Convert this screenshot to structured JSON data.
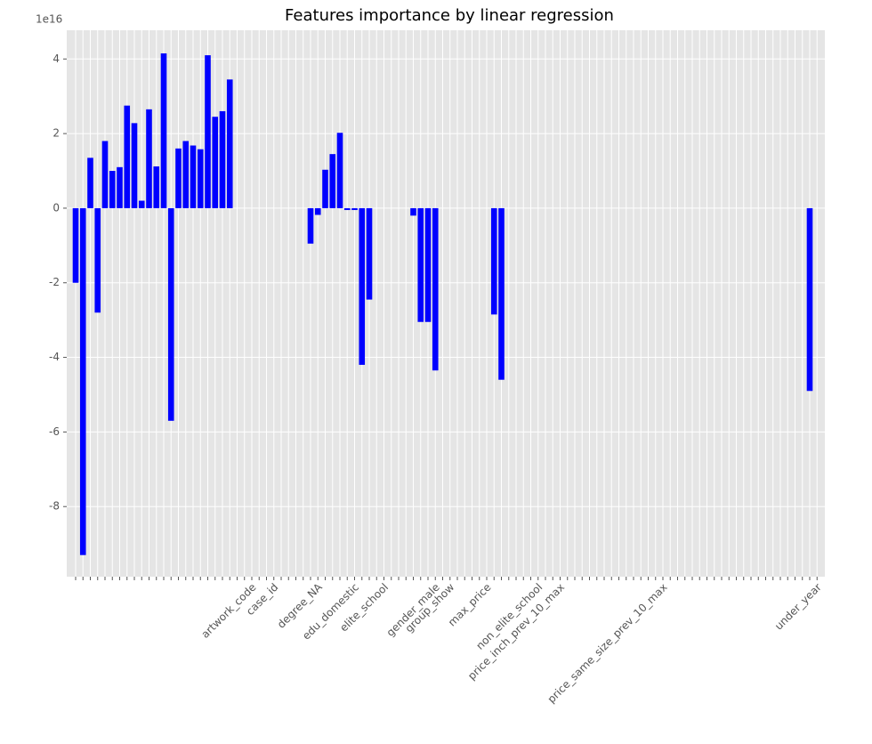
{
  "chart_data": {
    "type": "bar",
    "title": "Features importance by linear regression",
    "y_offset_label": "1e16",
    "color": "#0000ff",
    "grid": true,
    "categories": [
      null,
      null,
      null,
      null,
      null,
      null,
      null,
      null,
      null,
      null,
      null,
      null,
      null,
      null,
      null,
      null,
      null,
      null,
      null,
      null,
      null,
      null,
      null,
      null,
      "artwork_code",
      null,
      null,
      "case_id",
      null,
      null,
      null,
      null,
      null,
      "degree_NA",
      null,
      null,
      null,
      null,
      "edu_domestic",
      null,
      null,
      null,
      "elite_school",
      null,
      null,
      null,
      null,
      null,
      null,
      "gender_male",
      null,
      "group_show",
      null,
      null,
      null,
      null,
      "max_price",
      null,
      null,
      null,
      null,
      null,
      null,
      "non_elite_school",
      null,
      null,
      "price_inch_prev_10_max",
      null,
      null,
      null,
      null,
      null,
      null,
      null,
      null,
      null,
      null,
      null,
      null,
      null,
      "price_same_size_prev_10_max",
      null,
      null,
      null,
      null,
      null,
      null,
      null,
      null,
      null,
      null,
      null,
      null,
      null,
      null,
      null,
      null,
      null,
      null,
      null,
      null,
      "under_year"
    ],
    "values": [
      -2.0,
      -9.3,
      1.35,
      -2.8,
      1.8,
      1.0,
      1.1,
      2.75,
      2.28,
      0.2,
      2.65,
      1.12,
      4.15,
      -5.7,
      1.6,
      1.8,
      1.68,
      1.58,
      4.1,
      2.45,
      2.6,
      3.45,
      0,
      0,
      0,
      0,
      0,
      0,
      0,
      0,
      0,
      0,
      -0.95,
      -0.18,
      1.03,
      1.45,
      2.02,
      -0.05,
      -0.05,
      -4.2,
      -2.45,
      0,
      0,
      0,
      0,
      0,
      -0.2,
      -3.05,
      -3.05,
      -4.35,
      0,
      0,
      0,
      0,
      0,
      0,
      0,
      -2.85,
      -4.6,
      0,
      0,
      0,
      0,
      0,
      0,
      0,
      0,
      0,
      0,
      0,
      0,
      0,
      0,
      0,
      0,
      0,
      0,
      0,
      0,
      0,
      0,
      0,
      0,
      0,
      0,
      0,
      0,
      0,
      0,
      0,
      0,
      0,
      0,
      0,
      0,
      0,
      0,
      0,
      0,
      0,
      -4.9,
      0
    ],
    "ylim": [
      -9.88,
      4.77
    ],
    "yticks": [
      -8,
      -6,
      -4,
      -2,
      0,
      2,
      4
    ]
  }
}
